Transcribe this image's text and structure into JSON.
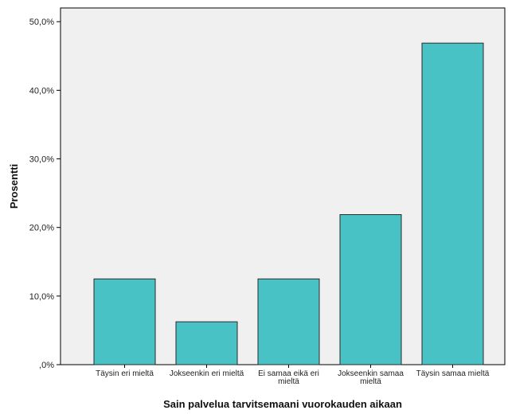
{
  "chart_data": {
    "type": "bar",
    "title": "",
    "xlabel": "Sain palvelua tarvitsemaani vuorokauden aikaan",
    "ylabel": "Prosentti",
    "categories": [
      [
        "Täysin eri mieltä"
      ],
      [
        "Jokseenkin eri mieltä"
      ],
      [
        "Ei samaa eikä eri",
        "mieltä"
      ],
      [
        "Jokseenkin samaa",
        "mieltä"
      ],
      [
        "Täysin samaa mieltä"
      ]
    ],
    "values": [
      12.5,
      6.25,
      12.5,
      21.875,
      46.875
    ],
    "unit": "%",
    "ylim": [
      0,
      52
    ],
    "yticks": [
      {
        "value": 0,
        "label": ",0%"
      },
      {
        "value": 10,
        "label": "10,0%"
      },
      {
        "value": 20,
        "label": "20,0%"
      },
      {
        "value": 30,
        "label": "30,0%"
      },
      {
        "value": 40,
        "label": "40,0%"
      },
      {
        "value": 50,
        "label": "50,0%"
      }
    ],
    "grid": false,
    "legend": "none"
  },
  "colors": {
    "bar_fill": "#48c2c5",
    "bar_stroke": "#2b2b2b",
    "plot_background": "#f0f0f0",
    "axis": "#000000"
  }
}
